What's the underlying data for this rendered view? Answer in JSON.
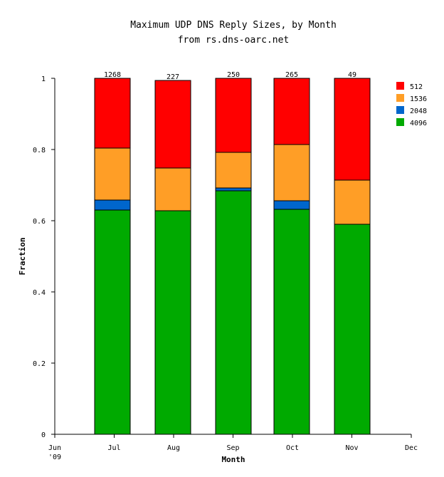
{
  "chart_data": {
    "type": "bar",
    "stacked": true,
    "title": "Maximum UDP DNS Reply Sizes, by Month",
    "subtitle": "from rs.dns-oarc.net",
    "xlabel": "Month",
    "ylabel": "Fraction",
    "ylim": [
      0,
      1
    ],
    "yticks": [
      "0",
      "0.2",
      "0.4",
      "0.6",
      "0.8",
      "1"
    ],
    "ytick_values": [
      0,
      0.2,
      0.4,
      0.6,
      0.8,
      1
    ],
    "xticks": [
      "Jun\n'09",
      "Jul",
      "Aug",
      "Sep",
      "Oct",
      "Nov",
      "Dec"
    ],
    "categories": [
      "Jul",
      "Aug",
      "Sep",
      "Oct",
      "Nov"
    ],
    "totals": [
      "1268",
      "227",
      "250",
      "265",
      "49"
    ],
    "legend_position": "top-right",
    "series": [
      {
        "name": "4096",
        "color": "#00aa00",
        "values": [
          0.63,
          0.628,
          0.684,
          0.632,
          0.59
        ]
      },
      {
        "name": "2048",
        "color": "#0066cc",
        "values": [
          0.028,
          0.0,
          0.008,
          0.024,
          0.0
        ]
      },
      {
        "name": "1536",
        "color": "#ff9e26",
        "values": [
          0.146,
          0.12,
          0.1,
          0.158,
          0.124
        ]
      },
      {
        "name": "512",
        "color": "#ff0000",
        "values": [
          0.196,
          0.246,
          0.208,
          0.186,
          0.286
        ]
      }
    ],
    "legend_order": [
      "512",
      "1536",
      "2048",
      "4096"
    ]
  }
}
